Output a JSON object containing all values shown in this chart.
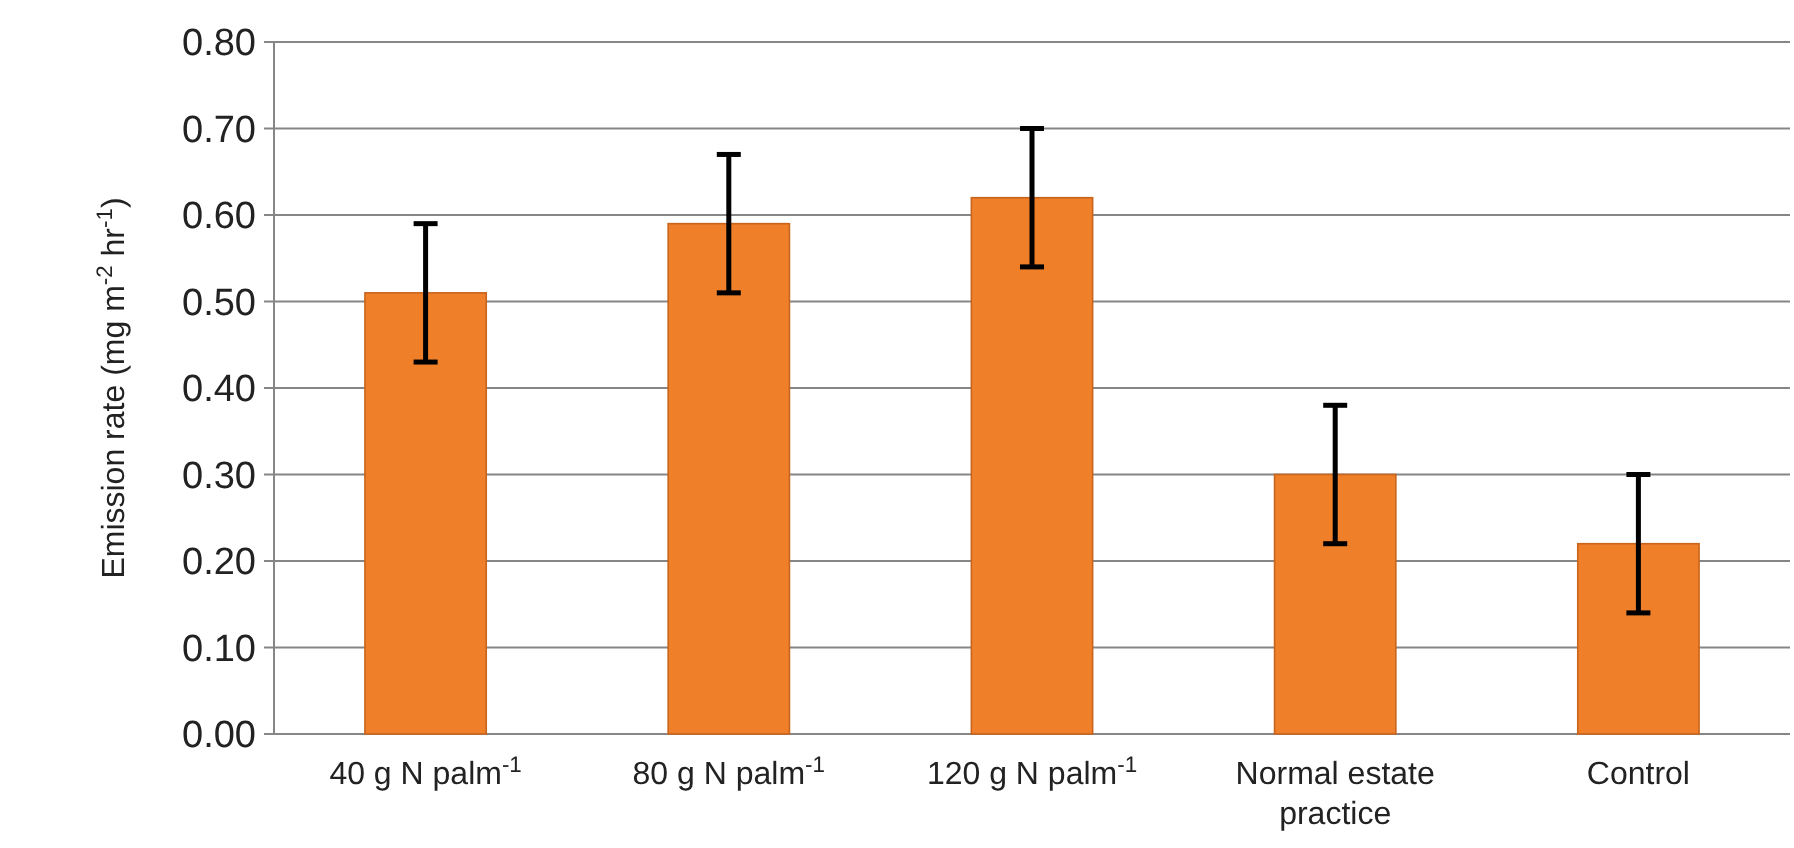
{
  "chart_data": {
    "type": "bar",
    "ylabel": "Emission rate (mg m$^{-2}$ hr$^{-1}$)",
    "categories": [
      "40 g N palm$^{-1}$",
      "80 g N palm$^{-1}$",
      "120 g N palm$^{-1}$",
      "Normal estate practice",
      "Control"
    ],
    "values": [
      0.51,
      0.59,
      0.62,
      0.3,
      0.22
    ],
    "errors": [
      0.08,
      0.08,
      0.08,
      0.08,
      0.08
    ],
    "color": "#f07f2a",
    "ylim": [
      0,
      0.8
    ],
    "yticks": [
      {
        "value": 0,
        "label": "0.00"
      },
      {
        "value": 0.1,
        "label": "0.10"
      },
      {
        "value": 0.2,
        "label": "0.20"
      },
      {
        "value": 0.3,
        "label": "0.30"
      },
      {
        "value": 0.4,
        "label": "0.40"
      },
      {
        "value": 0.5,
        "label": "0.50"
      },
      {
        "value": 0.6,
        "label": "0.60"
      },
      {
        "value": 0.7,
        "label": "0.70"
      },
      {
        "value": 0.8,
        "label": "0.80"
      }
    ],
    "grid": "y"
  }
}
